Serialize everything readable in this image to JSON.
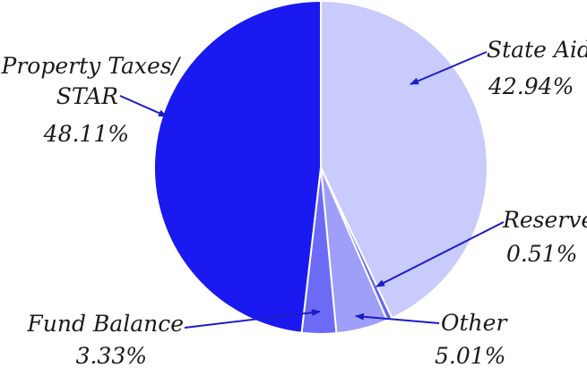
{
  "chart_data": {
    "type": "pie",
    "title": "",
    "slices": [
      {
        "label": "State Aid",
        "value": 42.94,
        "value_label": "42.94%",
        "color": "#c8cbfb"
      },
      {
        "label": "Reserves",
        "value": 0.51,
        "value_label": "0.51%",
        "color": "#6767f2"
      },
      {
        "label": "Other",
        "value": 5.01,
        "value_label": "5.01%",
        "color": "#9f9ff9"
      },
      {
        "label": "Fund Balance",
        "value": 3.33,
        "value_label": "3.33%",
        "color": "#6b6bf6"
      },
      {
        "label": "Property Taxes/ STAR",
        "value": 48.11,
        "value_label": "48.11%",
        "color": "#1919f0"
      }
    ],
    "label_lines": {
      "property_taxes": [
        "Property Taxes/",
        "STAR"
      ]
    },
    "arrow_color": "#1c1cc8"
  }
}
